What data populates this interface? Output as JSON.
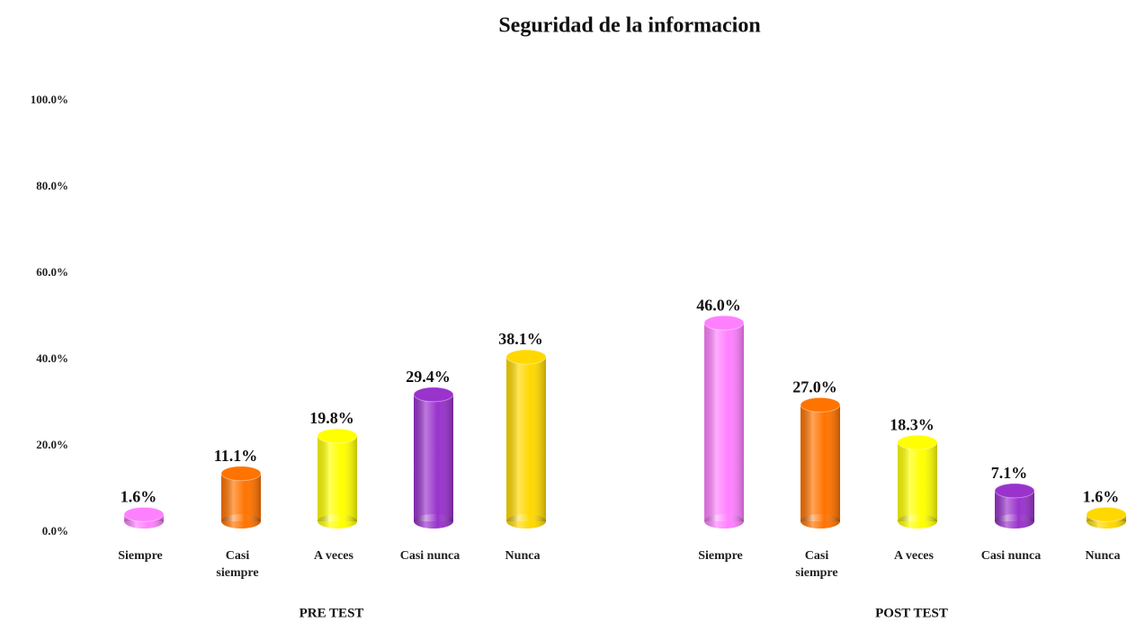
{
  "chart_data": {
    "type": "cylinder-bar",
    "title": "Seguridad de la informacion",
    "ylim": [
      0,
      100
    ],
    "yticks": [
      {
        "value": 0,
        "label": "0.0%"
      },
      {
        "value": 20,
        "label": "20.0%"
      },
      {
        "value": 40,
        "label": "40.0%"
      },
      {
        "value": 60,
        "label": "60.0%"
      },
      {
        "value": 80,
        "label": "80.0%"
      },
      {
        "value": 100,
        "label": "100.0%"
      }
    ],
    "grid": false,
    "groups": [
      {
        "name": "PRE TEST",
        "categories": [
          "Siempre",
          "Casi siempre",
          "A veces",
          "Casi nunca",
          "Nunca"
        ],
        "values": [
          1.6,
          11.1,
          19.8,
          29.4,
          38.1
        ],
        "value_labels": [
          "1.6%",
          "11.1%",
          "19.8%",
          "29.4%",
          "38.1%"
        ],
        "colors": [
          "#ff80ff",
          "#ff7300",
          "#ffff00",
          "#9933cc",
          "#ffd800"
        ]
      },
      {
        "name": "POST TEST",
        "categories": [
          "Siempre",
          "Casi siempre",
          "A veces",
          "Casi nunca",
          "Nunca"
        ],
        "values": [
          46.0,
          27.0,
          18.3,
          7.1,
          1.6
        ],
        "value_labels": [
          "46.0%",
          "27.0%",
          "18.3%",
          "7.1%",
          "1.6%"
        ],
        "colors": [
          "#ff80ff",
          "#ff7300",
          "#ffff00",
          "#9933cc",
          "#ffd800"
        ]
      }
    ]
  }
}
